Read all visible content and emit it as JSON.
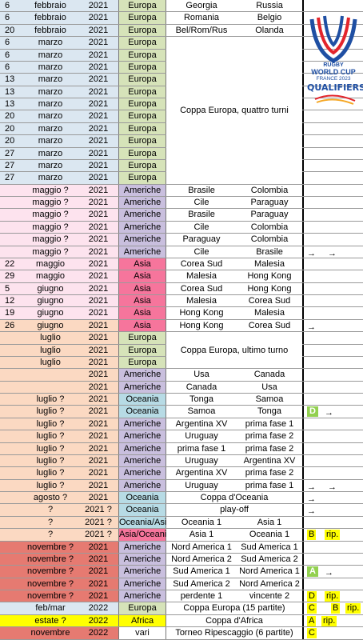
{
  "rows": [
    {
      "d": "6",
      "m": "febbraio",
      "y": "2021",
      "r": "Europa",
      "t1": "Georgia",
      "t2": "Russia",
      "bg": "c",
      "rc": "eu"
    },
    {
      "d": "6",
      "m": "febbraio",
      "y": "2021",
      "r": "Europa",
      "t1": "Romania",
      "t2": "Belgio",
      "bg": "c",
      "rc": "eu"
    },
    {
      "d": "20",
      "m": "febbraio",
      "y": "2021",
      "r": "Europa",
      "t1": "Bel/Rom/Rus",
      "t2": "Olanda",
      "bg": "c",
      "rc": "eu"
    },
    {
      "d": "6",
      "m": "marzo",
      "y": "2021",
      "r": "Europa",
      "bg": "c",
      "rc": "eu"
    },
    {
      "d": "6",
      "m": "marzo",
      "y": "2021",
      "r": "Europa",
      "bg": "c",
      "rc": "eu"
    },
    {
      "d": "6",
      "m": "marzo",
      "y": "2021",
      "r": "Europa",
      "bg": "c",
      "rc": "eu"
    },
    {
      "d": "13",
      "m": "marzo",
      "y": "2021",
      "r": "Europa",
      "bg": "c",
      "rc": "eu"
    },
    {
      "d": "13",
      "m": "marzo",
      "y": "2021",
      "r": "Europa",
      "bg": "c",
      "rc": "eu"
    },
    {
      "d": "13",
      "m": "marzo",
      "y": "2021",
      "r": "Europa",
      "bg": "c",
      "rc": "eu"
    },
    {
      "d": "20",
      "m": "marzo",
      "y": "2021",
      "r": "Europa",
      "bg": "c",
      "rc": "eu"
    },
    {
      "d": "20",
      "m": "marzo",
      "y": "2021",
      "r": "Europa",
      "bg": "c",
      "rc": "eu"
    },
    {
      "d": "20",
      "m": "marzo",
      "y": "2021",
      "r": "Europa",
      "bg": "c",
      "rc": "eu"
    },
    {
      "d": "27",
      "m": "marzo",
      "y": "2021",
      "r": "Europa",
      "bg": "c",
      "rc": "eu"
    },
    {
      "d": "27",
      "m": "marzo",
      "y": "2021",
      "r": "Europa",
      "bg": "c",
      "rc": "eu"
    },
    {
      "d": "27",
      "m": "marzo",
      "y": "2021",
      "r": "Europa",
      "bg": "c",
      "rc": "eu"
    },
    {
      "d": "",
      "m": "maggio ?",
      "y": "2021",
      "r": "Americhe",
      "t1": "Brasile",
      "t2": "Colombia",
      "bg": "pk",
      "rc": "am"
    },
    {
      "d": "",
      "m": "maggio ?",
      "y": "2021",
      "r": "Americhe",
      "t1": "Cile",
      "t2": "Paraguay",
      "bg": "pk",
      "rc": "am"
    },
    {
      "d": "",
      "m": "maggio ?",
      "y": "2021",
      "r": "Americhe",
      "t1": "Brasile",
      "t2": "Paraguay",
      "bg": "pk",
      "rc": "am"
    },
    {
      "d": "",
      "m": "maggio ?",
      "y": "2021",
      "r": "Americhe",
      "t1": "Cile",
      "t2": "Colombia",
      "bg": "pk",
      "rc": "am"
    },
    {
      "d": "",
      "m": "maggio ?",
      "y": "2021",
      "r": "Americhe",
      "t1": "Paraguay",
      "t2": "Colombia",
      "bg": "pk",
      "rc": "am"
    },
    {
      "d": "",
      "m": "maggio ?",
      "y": "2021",
      "r": "Americhe",
      "t1": "Cile",
      "t2": "Brasile",
      "bg": "pk",
      "rc": "am",
      "ext": "arrows2"
    },
    {
      "d": "22",
      "m": "maggio",
      "y": "2021",
      "r": "Asia",
      "t1": "Corea Sud",
      "t2": "Malesia",
      "bg": "pk",
      "rc": "as"
    },
    {
      "d": "29",
      "m": "maggio",
      "y": "2021",
      "r": "Asia",
      "t1": "Malesia",
      "t2": "Hong Kong",
      "bg": "pk",
      "rc": "as"
    },
    {
      "d": "5",
      "m": "giugno",
      "y": "2021",
      "r": "Asia",
      "t1": "Corea Sud",
      "t2": "Hong Kong",
      "bg": "pk",
      "rc": "as"
    },
    {
      "d": "12",
      "m": "giugno",
      "y": "2021",
      "r": "Asia",
      "t1": "Malesia",
      "t2": "Corea Sud",
      "bg": "pk",
      "rc": "as"
    },
    {
      "d": "19",
      "m": "giugno",
      "y": "2021",
      "r": "Asia",
      "t1": "Hong Kong",
      "t2": "Malesia",
      "bg": "pk",
      "rc": "as"
    },
    {
      "d": "26",
      "m": "giugno",
      "y": "2021",
      "r": "Asia",
      "t1": "Hong Kong",
      "t2": "Corea Sud",
      "bg": "or",
      "rc": "as",
      "ext": "arrow1"
    },
    {
      "d": "",
      "m": "luglio",
      "y": "2021",
      "r": "Europa",
      "bg": "or",
      "rc": "eu"
    },
    {
      "d": "",
      "m": "luglio",
      "y": "2021",
      "r": "Europa",
      "bg": "or",
      "rc": "eu"
    },
    {
      "d": "",
      "m": "luglio",
      "y": "2021",
      "r": "Europa",
      "bg": "or",
      "rc": "eu"
    },
    {
      "d": "",
      "m": "",
      "y": "2021",
      "r": "Americhe",
      "t1": "Usa",
      "t2": "Canada",
      "bg": "or",
      "rc": "am"
    },
    {
      "d": "",
      "m": "",
      "y": "2021",
      "r": "Americhe",
      "t1": "Canada",
      "t2": "Usa",
      "bg": "or",
      "rc": "am"
    },
    {
      "d": "",
      "m": "luglio ?",
      "y": "2021",
      "r": "Oceania",
      "t1": "Tonga",
      "t2": "Samoa",
      "bg": "or",
      "rc": "oc"
    },
    {
      "d": "",
      "m": "luglio ?",
      "y": "2021",
      "r": "Oceania",
      "t1": "Samoa",
      "t2": "Tonga",
      "bg": "or",
      "rc": "oc",
      "ext": "D-arrow"
    },
    {
      "d": "",
      "m": "luglio ?",
      "y": "2021",
      "r": "Americhe",
      "t1": "Argentina XV",
      "t2": "prima fase 1",
      "bg": "or",
      "rc": "am"
    },
    {
      "d": "",
      "m": "luglio ?",
      "y": "2021",
      "r": "Americhe",
      "t1": "Uruguay",
      "t2": "prima fase 2",
      "bg": "or",
      "rc": "am"
    },
    {
      "d": "",
      "m": "luglio ?",
      "y": "2021",
      "r": "Americhe",
      "t1": "prima fase 1",
      "t2": "prima fase 2",
      "bg": "or",
      "rc": "am"
    },
    {
      "d": "",
      "m": "luglio ?",
      "y": "2021",
      "r": "Americhe",
      "t1": "Uruguay",
      "t2": "Argentina XV",
      "bg": "or",
      "rc": "am"
    },
    {
      "d": "",
      "m": "luglio ?",
      "y": "2021",
      "r": "Americhe",
      "t1": "Argentina XV",
      "t2": "prima fase 2",
      "bg": "or",
      "rc": "am"
    },
    {
      "d": "",
      "m": "luglio ?",
      "y": "2021",
      "r": "Americhe",
      "t1": "Uruguay",
      "t2": "prima fase 1",
      "bg": "or",
      "rc": "am",
      "ext": "arrows2"
    },
    {
      "d": "",
      "m": "agosto ?",
      "y": "2021",
      "r": "Oceania",
      "span": "Coppa d'Oceania",
      "bg": "or",
      "rc": "oc",
      "ext": "arrow1"
    },
    {
      "d": "",
      "m": "?",
      "y": "2021 ?",
      "r": "Oceania",
      "span": "play-off",
      "bg": "or",
      "rc": "oc",
      "ext": "arrow1"
    },
    {
      "d": "",
      "m": "?",
      "y": "2021 ?",
      "r": "Oceania/Asia",
      "t1": "Oceania 1",
      "t2": "Asia 1",
      "bg": "or",
      "rc": "oc"
    },
    {
      "d": "",
      "m": "?",
      "y": "2021 ?",
      "r": "Asia/Oceania",
      "t1": "Asia 1",
      "t2": "Oceania 1",
      "bg": "or",
      "rc": "ao",
      "ext": "B-rip"
    },
    {
      "d": "",
      "m": "novembre ?",
      "y": "2021",
      "r": "Americhe",
      "t1": "Nord America 1",
      "t2": "Sud America 1",
      "bg": "rd",
      "rc": "am"
    },
    {
      "d": "",
      "m": "novembre ?",
      "y": "2021",
      "r": "Americhe",
      "t1": "Nord America 2",
      "t2": "Sud America 2",
      "bg": "rd",
      "rc": "am"
    },
    {
      "d": "",
      "m": "novembre ?",
      "y": "2021",
      "r": "Americhe",
      "t1": "Sud America 1",
      "t2": "Nord America 1",
      "bg": "rd",
      "rc": "am",
      "ext": "A-arrow"
    },
    {
      "d": "",
      "m": "novembre ?",
      "y": "2021",
      "r": "Americhe",
      "t1": "Sud America 2",
      "t2": "Nord America 2",
      "bg": "rd",
      "rc": "am"
    },
    {
      "d": "",
      "m": "novembre ?",
      "y": "2021",
      "r": "Americhe",
      "t1": "perdente 1",
      "t2": "vincente 2",
      "bg": "rd",
      "rc": "am",
      "ext": "D-rip"
    },
    {
      "d": "",
      "m": "feb/mar",
      "y": "2022",
      "r": "Europa",
      "span": "Coppa Europa (15 partite)",
      "bg": "bl",
      "rc": "eu",
      "ext": "C-B-rip"
    },
    {
      "d": "",
      "m": "estate ?",
      "y": "2022",
      "r": "Africa",
      "span": "Coppa d'Africa",
      "bg": "ye",
      "rc": "af",
      "ext": "A-rip"
    },
    {
      "d": "",
      "m": "novembre",
      "y": "2022",
      "r": "vari",
      "span": "Torneo Ripescaggio (6 partite)",
      "bg": "rd",
      "rc": "va",
      "ext": "C"
    }
  ],
  "merged": {
    "europe_4_rounds": "Coppa Europa, quattro turni",
    "europe_last_round": "Coppa Europa, ultimo turno"
  },
  "labels": {
    "arrow": "→",
    "rip": "rip.",
    "A": "A",
    "B": "B",
    "C": "C",
    "D": "D"
  },
  "logo": {
    "line1": "RUGBY",
    "line2": "WORLD CUP",
    "line3": "FRANCE 2023",
    "line4": "QUALIFIERS",
    "colors": {
      "blue": "#1f4fa3",
      "red": "#e3242b",
      "orange": "#f5a623"
    }
  }
}
